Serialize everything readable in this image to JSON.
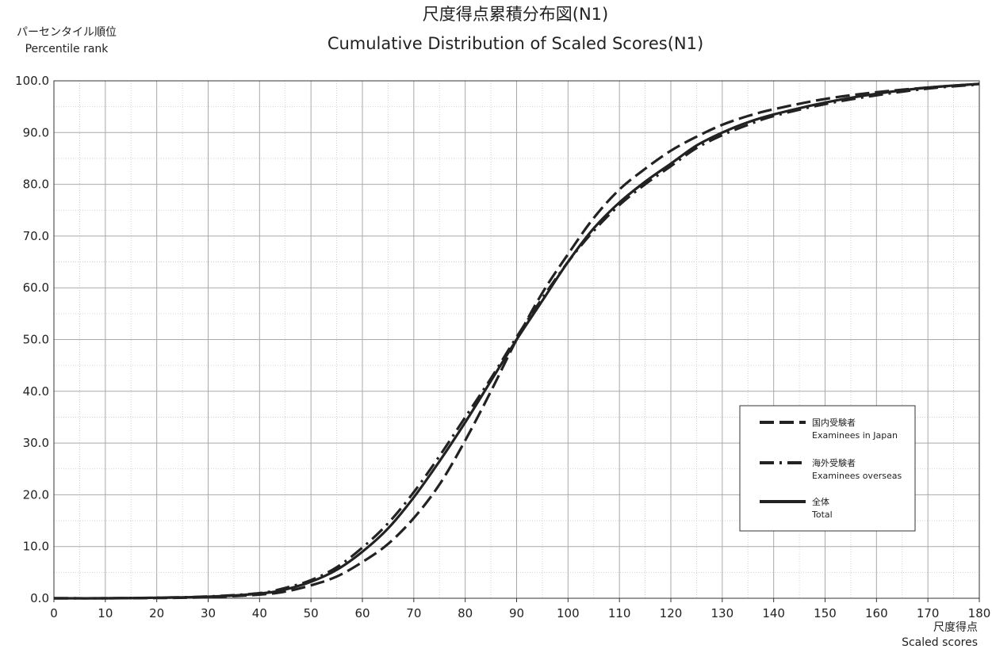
{
  "chart_data": {
    "type": "line",
    "title_ja": "尺度得点累積分布図(N1)",
    "title_en": "Cumulative Distribution of Scaled Scores(N1)",
    "ylabel_ja": "パーセンタイル順位",
    "ylabel_en": "Percentile rank",
    "xlabel_ja": "尺度得点",
    "xlabel_en": "Scaled scores",
    "xlim": [
      0,
      180
    ],
    "ylim": [
      0,
      100
    ],
    "x_ticks": [
      "0",
      "10",
      "20",
      "30",
      "40",
      "50",
      "60",
      "70",
      "80",
      "90",
      "100",
      "110",
      "120",
      "130",
      "140",
      "150",
      "160",
      "170",
      "180"
    ],
    "y_ticks": [
      "0.0",
      "10.0",
      "20.0",
      "30.0",
      "40.0",
      "50.0",
      "60.0",
      "70.0",
      "80.0",
      "90.0",
      "100.0"
    ],
    "grid": true,
    "legend_position": "right-middle",
    "series": [
      {
        "label_ja": "国内受験者",
        "label_en": "Examinees in Japan",
        "style": "dashed",
        "color": "#222222",
        "points": [
          [
            0,
            0.0
          ],
          [
            10,
            0.0
          ],
          [
            20,
            0.05
          ],
          [
            30,
            0.2
          ],
          [
            40,
            0.7
          ],
          [
            45,
            1.3
          ],
          [
            50,
            2.5
          ],
          [
            55,
            4.2
          ],
          [
            60,
            7.0
          ],
          [
            65,
            10.5
          ],
          [
            70,
            15.5
          ],
          [
            75,
            22.0
          ],
          [
            80,
            30.5
          ],
          [
            85,
            40.0
          ],
          [
            90,
            50.0
          ],
          [
            95,
            59.0
          ],
          [
            100,
            66.5
          ],
          [
            105,
            73.5
          ],
          [
            110,
            79.0
          ],
          [
            115,
            83.0
          ],
          [
            120,
            86.5
          ],
          [
            125,
            89.2
          ],
          [
            130,
            91.5
          ],
          [
            135,
            93.2
          ],
          [
            140,
            94.5
          ],
          [
            150,
            96.5
          ],
          [
            160,
            97.8
          ],
          [
            170,
            98.7
          ],
          [
            180,
            99.4
          ]
        ]
      },
      {
        "label_ja": "海外受験者",
        "label_en": "Examinees overseas",
        "style": "dash-dot",
        "color": "#222222",
        "points": [
          [
            0,
            0.0
          ],
          [
            10,
            0.0
          ],
          [
            20,
            0.1
          ],
          [
            30,
            0.35
          ],
          [
            40,
            1.0
          ],
          [
            45,
            2.0
          ],
          [
            50,
            3.5
          ],
          [
            55,
            6.0
          ],
          [
            60,
            9.8
          ],
          [
            65,
            14.5
          ],
          [
            70,
            20.5
          ],
          [
            75,
            27.5
          ],
          [
            80,
            35.0
          ],
          [
            85,
            42.5
          ],
          [
            90,
            50.5
          ],
          [
            95,
            58.0
          ],
          [
            100,
            65.0
          ],
          [
            105,
            71.0
          ],
          [
            110,
            76.0
          ],
          [
            115,
            80.0
          ],
          [
            120,
            83.5
          ],
          [
            125,
            87.0
          ],
          [
            130,
            89.5
          ],
          [
            135,
            91.5
          ],
          [
            140,
            93.2
          ],
          [
            150,
            95.5
          ],
          [
            160,
            97.2
          ],
          [
            170,
            98.5
          ],
          [
            180,
            99.3
          ]
        ]
      },
      {
        "label_ja": "全体",
        "label_en": "Total",
        "style": "solid",
        "color": "#222222",
        "points": [
          [
            0,
            0.0
          ],
          [
            10,
            0.0
          ],
          [
            20,
            0.1
          ],
          [
            30,
            0.3
          ],
          [
            40,
            0.9
          ],
          [
            45,
            1.7
          ],
          [
            50,
            3.2
          ],
          [
            55,
            5.5
          ],
          [
            60,
            9.0
          ],
          [
            65,
            13.5
          ],
          [
            70,
            19.5
          ],
          [
            75,
            26.5
          ],
          [
            80,
            34.0
          ],
          [
            85,
            42.0
          ],
          [
            90,
            50.0
          ],
          [
            95,
            57.5
          ],
          [
            100,
            65.0
          ],
          [
            105,
            71.5
          ],
          [
            110,
            76.5
          ],
          [
            115,
            80.5
          ],
          [
            120,
            84.0
          ],
          [
            125,
            87.5
          ],
          [
            130,
            90.0
          ],
          [
            135,
            92.0
          ],
          [
            140,
            93.5
          ],
          [
            150,
            95.8
          ],
          [
            160,
            97.5
          ],
          [
            170,
            98.7
          ],
          [
            180,
            99.4
          ]
        ]
      }
    ]
  }
}
